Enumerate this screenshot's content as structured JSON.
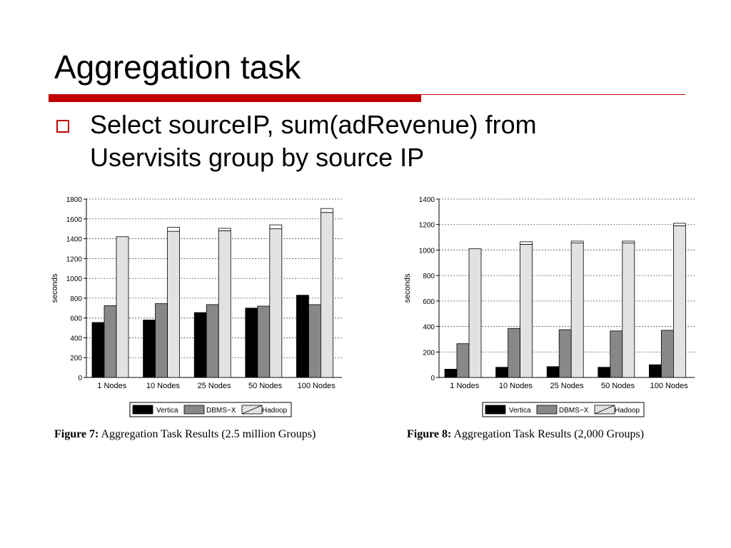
{
  "slide": {
    "title": "Aggregation task",
    "bullet": {
      "line1": "Select sourceIP, sum(adRevenue) from",
      "line2": "Uservisits group by source IP"
    }
  },
  "colors": {
    "accent": "#c00000",
    "vertica": "#000000",
    "dbmsx": "#888888",
    "hadoop": "#e2e2e2",
    "hadoop_cap": "#ffffff",
    "grid": "#555555"
  },
  "chart_data": [
    {
      "type": "bar",
      "caption_number": "Figure 7:",
      "caption_text": "Aggregation Task Results (2.5 million Groups)",
      "ylabel": "seconds",
      "ylim": [
        0,
        1800
      ],
      "yticks": [
        0,
        200,
        400,
        600,
        800,
        1000,
        1200,
        1400,
        1600,
        1800
      ],
      "grid": true,
      "legend": "bottom-center",
      "categories": [
        "1 Nodes",
        "10 Nodes",
        "25 Nodes",
        "50 Nodes",
        "100 Nodes"
      ],
      "series": [
        {
          "name": "Vertica",
          "values": [
            555,
            580,
            655,
            700,
            830
          ]
        },
        {
          "name": "DBMS−X",
          "values": [
            725,
            745,
            735,
            720,
            735
          ]
        },
        {
          "name": "Hadoop",
          "values": [
            1420,
            1475,
            1480,
            1500,
            1665
          ],
          "cap": [
            0,
            40,
            25,
            40,
            40
          ]
        }
      ]
    },
    {
      "type": "bar",
      "caption_number": "Figure 8:",
      "caption_text": "Aggregation Task Results (2,000 Groups)",
      "ylabel": "seconds",
      "ylim": [
        0,
        1400
      ],
      "yticks": [
        0,
        200,
        400,
        600,
        800,
        1000,
        1200,
        1400
      ],
      "grid": true,
      "legend": "bottom-center",
      "categories": [
        "1 Nodes",
        "10 Nodes",
        "25 Nodes",
        "50 Nodes",
        "100 Nodes"
      ],
      "series": [
        {
          "name": "Vertica",
          "values": [
            65,
            80,
            85,
            80,
            100
          ]
        },
        {
          "name": "DBMS−X",
          "values": [
            265,
            385,
            375,
            365,
            370
          ]
        },
        {
          "name": "Hadoop",
          "values": [
            1010,
            1045,
            1055,
            1055,
            1190
          ],
          "cap": [
            0,
            20,
            15,
            15,
            20
          ]
        }
      ]
    }
  ]
}
